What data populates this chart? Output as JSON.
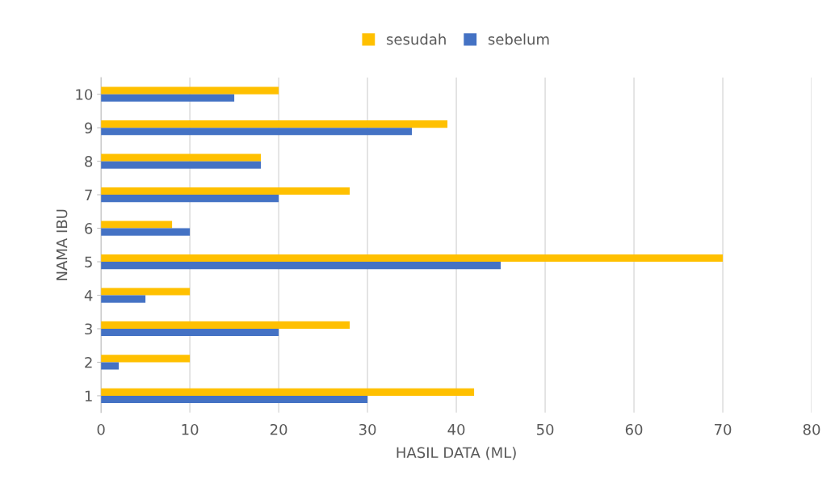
{
  "chart_data": {
    "type": "bar",
    "orientation": "horizontal",
    "xlabel": "HASIL DATA (ML)",
    "ylabel": "NAMA IBU",
    "categories": [
      "10",
      "9",
      "8",
      "7",
      "6",
      "5",
      "4",
      "3",
      "2",
      "1"
    ],
    "series": [
      {
        "name": "sesudah",
        "color": "#ffc000",
        "values": [
          20,
          39,
          18,
          28,
          8,
          70,
          10,
          28,
          10,
          42
        ]
      },
      {
        "name": "sebelum",
        "color": "#4472c4",
        "values": [
          15,
          35,
          18,
          20,
          10,
          45,
          5,
          20,
          2,
          30
        ]
      }
    ],
    "xlim": [
      0,
      80
    ],
    "xticks": [
      0,
      10,
      20,
      30,
      40,
      50,
      60,
      70,
      80
    ],
    "grid": "x",
    "legend": "top"
  }
}
